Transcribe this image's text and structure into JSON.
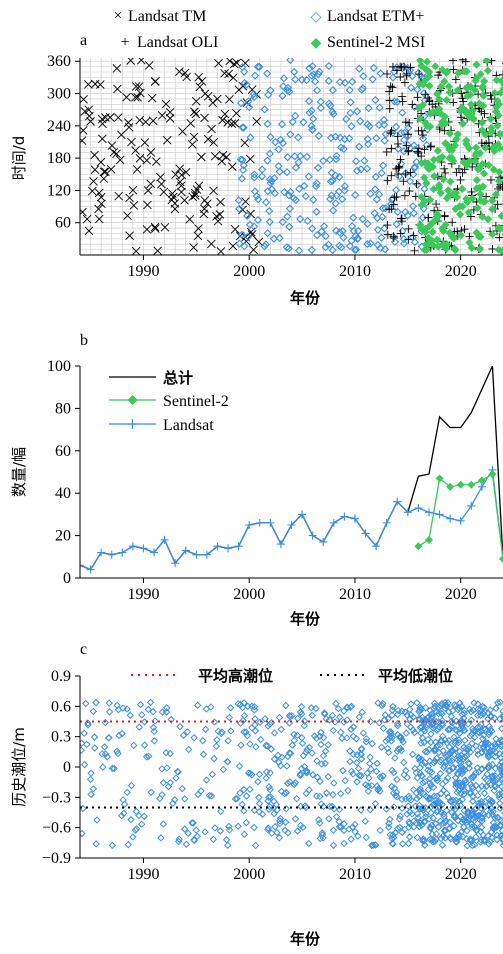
{
  "panel_a": {
    "label": "a",
    "legend": [
      "Landsat TM",
      "Landsat ETM+",
      "Landsat OLI",
      "Sentinel-2 MSI"
    ],
    "legend_symbols": [
      "×",
      "◇",
      "+",
      "◆"
    ],
    "ylabel": "时间/d",
    "xlabel": "年份",
    "xticks": [
      "1990",
      "2000",
      "2010",
      "2020"
    ],
    "yticks": [
      "60",
      "120",
      "180",
      "240",
      "300",
      "360"
    ]
  },
  "panel_b": {
    "label": "b",
    "legend": [
      "总计",
      "Sentinel-2",
      "Landsat"
    ],
    "ylabel": "数量/幅",
    "xlabel": "年份",
    "xticks": [
      "1990",
      "2000",
      "2010",
      "2020"
    ],
    "yticks": [
      "0",
      "20",
      "40",
      "60",
      "80",
      "100"
    ]
  },
  "panel_c": {
    "label": "c",
    "legend": [
      "平均高潮位",
      "平均低潮位"
    ],
    "ylabel": "历史潮位/m",
    "xlabel": "年份",
    "xticks": [
      "1990",
      "2000",
      "2010",
      "2020"
    ],
    "yticks": [
      "−0.9",
      "−0.6",
      "−0.3",
      "0",
      "0.3",
      "0.6",
      "0.9"
    ]
  },
  "colors": {
    "tm": "#000000",
    "etm": "#3a8fe0",
    "oli": "#000000",
    "s2": "#3cc85a",
    "total": "#000000",
    "mean_high": "#e02020",
    "mean_low": "#000000",
    "grid": "#c8c8c8"
  },
  "chart_data": [
    {
      "type": "scatter",
      "xlabel": "年份",
      "ylabel": "时间/d",
      "xlim": [
        1984,
        2024
      ],
      "ylim": [
        0,
        366
      ],
      "grid": true,
      "legend_position": "top",
      "series": [
        {
          "name": "Landsat TM",
          "x_range": [
            1984,
            2000
          ],
          "y_range": [
            5,
            365
          ]
        },
        {
          "name": "Landsat ETM+",
          "x_range": [
            1999,
            2017
          ],
          "y_range": [
            5,
            365
          ]
        },
        {
          "name": "Landsat OLI",
          "x_range": [
            2013,
            2024
          ],
          "y_range": [
            5,
            365
          ]
        },
        {
          "name": "Sentinel-2 MSI",
          "x_range": [
            2016,
            2024
          ],
          "y_range": [
            5,
            365
          ]
        }
      ]
    },
    {
      "type": "line",
      "xlabel": "年份",
      "ylabel": "数量/幅",
      "xlim": [
        1984,
        2024
      ],
      "ylim": [
        0,
        100
      ],
      "legend_position": "top-left",
      "series": [
        {
          "name": "总计",
          "x": [
            1984,
            1985,
            1986,
            1987,
            1988,
            1989,
            1990,
            1991,
            1992,
            1993,
            1994,
            1995,
            1996,
            1997,
            1998,
            1999,
            2000,
            2001,
            2002,
            2003,
            2004,
            2005,
            2006,
            2007,
            2008,
            2009,
            2010,
            2011,
            2012,
            2013,
            2014,
            2015,
            2016,
            2017,
            2018,
            2019,
            2020,
            2021,
            2022,
            2023,
            2024
          ],
          "y": [
            6,
            4,
            12,
            11,
            12,
            15,
            14,
            12,
            18,
            7,
            13,
            11,
            11,
            15,
            14,
            15,
            25,
            26,
            26,
            16,
            25,
            30,
            20,
            17,
            26,
            29,
            28,
            21,
            15,
            26,
            36,
            31,
            48,
            49,
            76,
            71,
            71,
            78,
            89,
            100,
            9
          ]
        },
        {
          "name": "Sentinel-2",
          "x": [
            2016,
            2017,
            2018,
            2019,
            2020,
            2021,
            2022,
            2023,
            2024
          ],
          "y": [
            15,
            18,
            47,
            43,
            44,
            44,
            46,
            49,
            9
          ]
        },
        {
          "name": "Landsat",
          "x": [
            1984,
            1985,
            1986,
            1987,
            1988,
            1989,
            1990,
            1991,
            1992,
            1993,
            1994,
            1995,
            1996,
            1997,
            1998,
            1999,
            2000,
            2001,
            2002,
            2003,
            2004,
            2005,
            2006,
            2007,
            2008,
            2009,
            2010,
            2011,
            2012,
            2013,
            2014,
            2015,
            2016,
            2017,
            2018,
            2019,
            2020,
            2021,
            2022,
            2023,
            2024
          ],
          "y": [
            6,
            4,
            12,
            11,
            12,
            15,
            14,
            12,
            18,
            7,
            13,
            11,
            11,
            15,
            14,
            15,
            25,
            26,
            26,
            16,
            25,
            30,
            20,
            17,
            26,
            29,
            28,
            21,
            15,
            26,
            36,
            31,
            33,
            31,
            30,
            28,
            27,
            34,
            43,
            51,
            9
          ]
        }
      ]
    },
    {
      "type": "scatter",
      "xlabel": "年份",
      "ylabel": "历史潮位/m",
      "xlim": [
        1984,
        2024
      ],
      "ylim": [
        -0.9,
        0.9
      ],
      "legend_position": "top",
      "reference_lines": [
        {
          "name": "平均高潮位",
          "y": 0.45
        },
        {
          "name": "平均低潮位",
          "y": -0.4
        }
      ],
      "series": [
        {
          "name": "",
          "x_range": [
            1984,
            2024
          ],
          "y_range": [
            -0.8,
            0.65
          ]
        }
      ]
    }
  ]
}
